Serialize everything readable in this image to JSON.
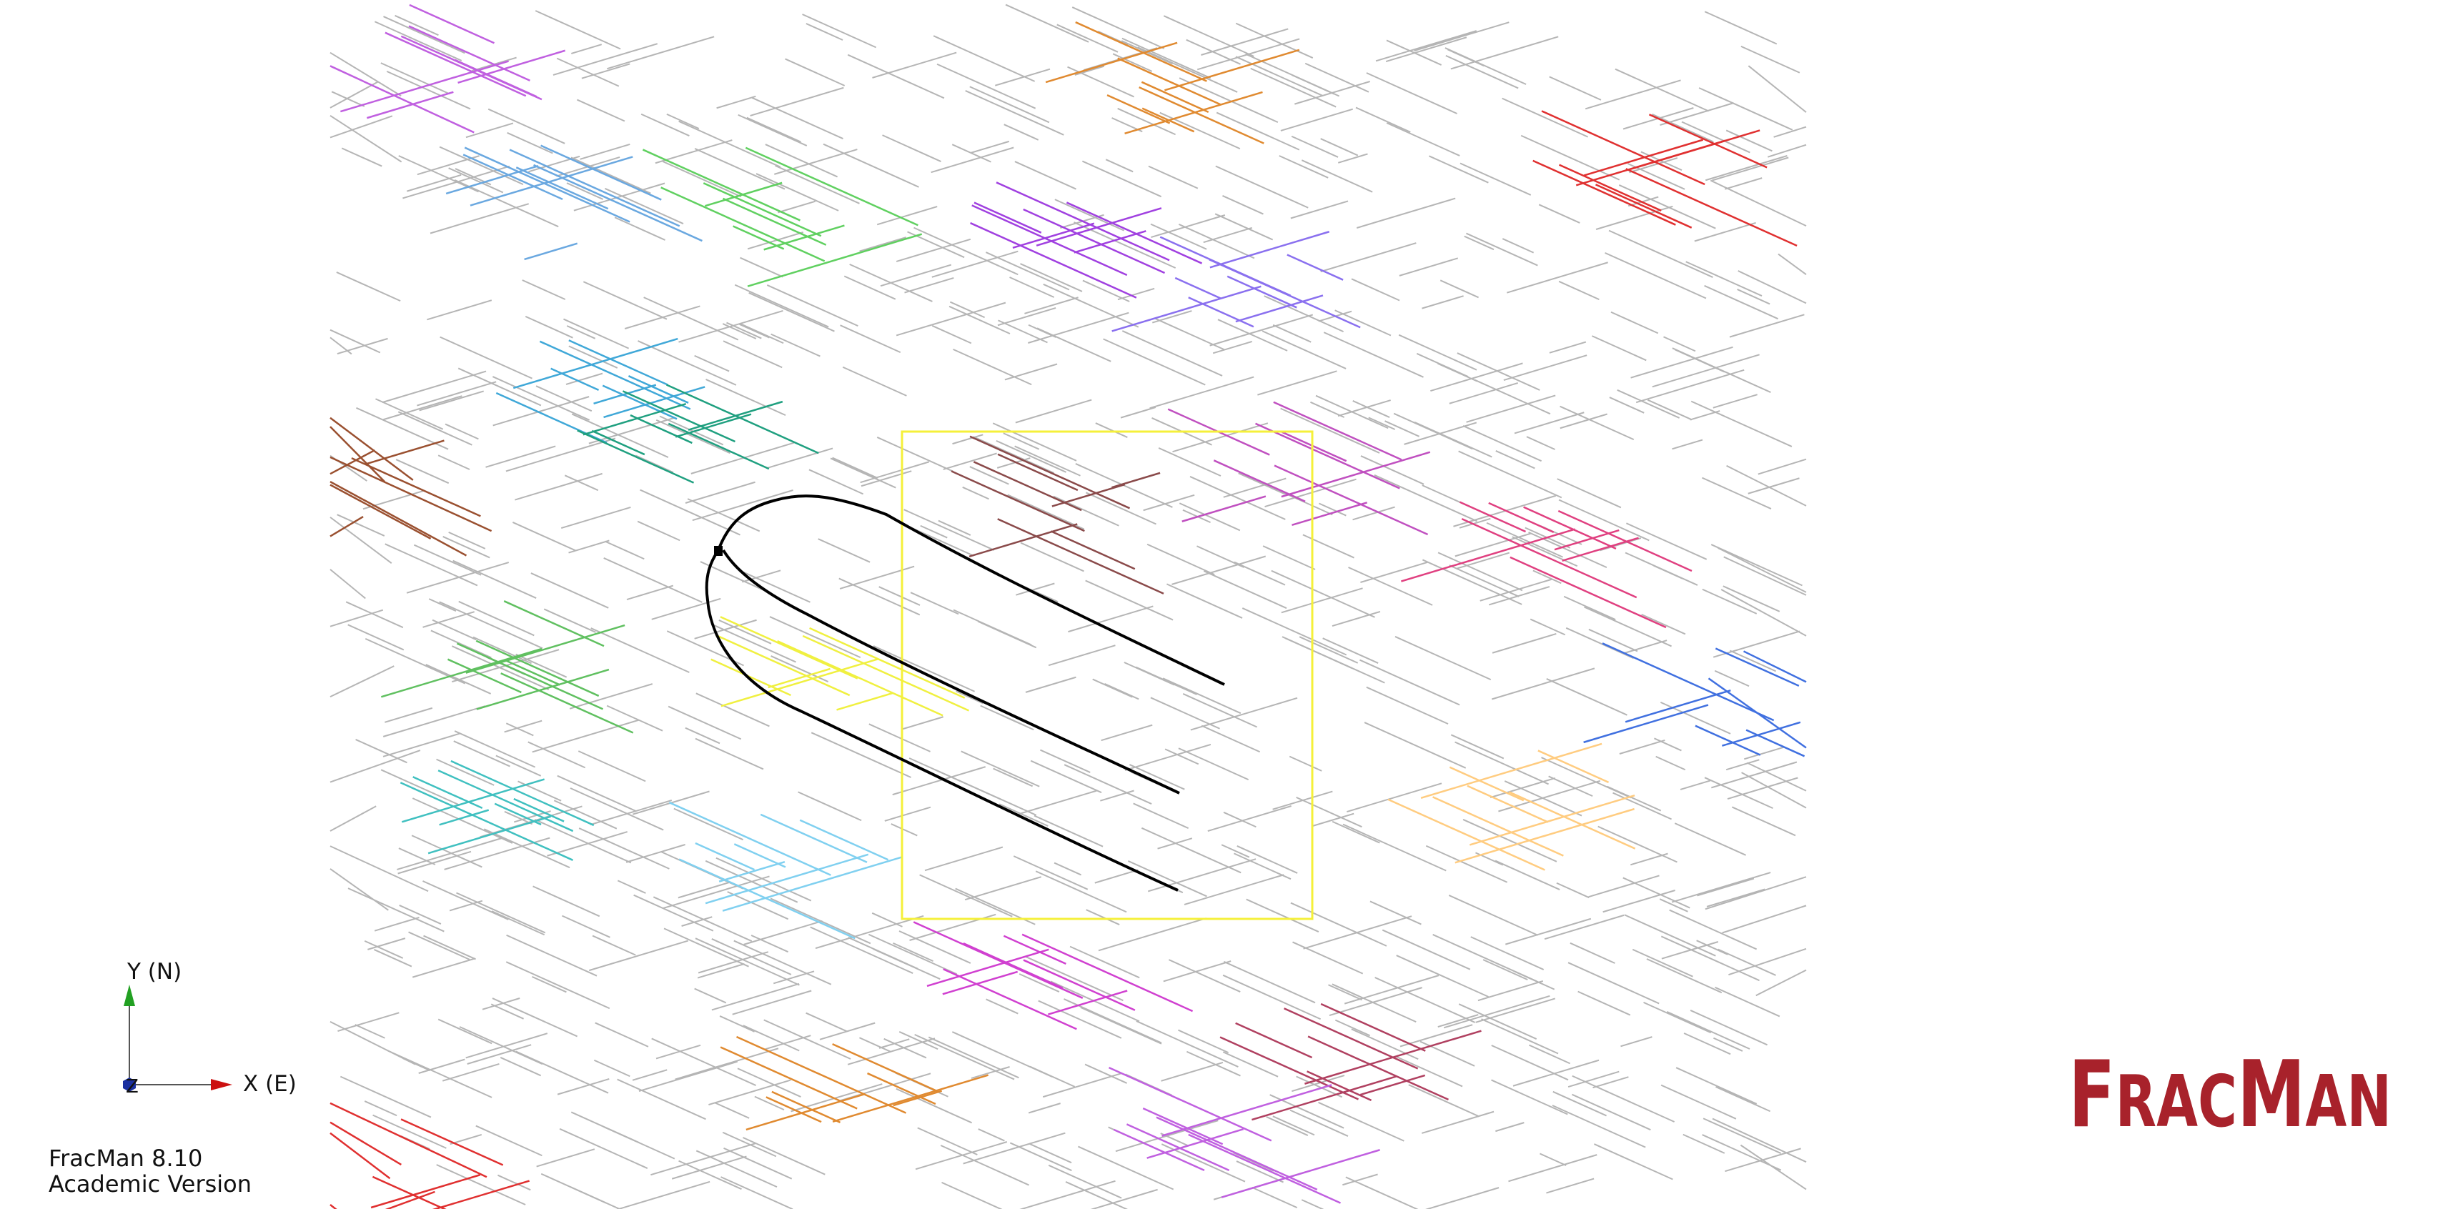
{
  "axes": {
    "y_label": "Y (N)",
    "x_label": "X (E)",
    "z_label": "Z",
    "colors": {
      "y": "#22a022",
      "x": "#cc1111",
      "z": "#1a2fa0"
    }
  },
  "version": {
    "line1": "FracMan 8.10",
    "line2": "Academic Version"
  },
  "logo": {
    "text": "FracMan",
    "color": "#a8222b"
  },
  "scene": {
    "selection_box_color": "#f5f03a",
    "well_path_color": "#000000",
    "background_fracture_color": "#b5b5b5",
    "fracture_set_colors": [
      "#c060e0",
      "#e08a30",
      "#e03030",
      "#6aa8e0",
      "#60d060",
      "#a040e0",
      "#8a70ef",
      "#40a8d8",
      "#20a080",
      "#9a5030",
      "#8a4a4a",
      "#c050c0",
      "#e04080",
      "#60c060",
      "#f0f040",
      "#40c0c0",
      "#ffcc80",
      "#4070e0",
      "#80d0f0",
      "#d040d0",
      "#b04060"
    ]
  }
}
